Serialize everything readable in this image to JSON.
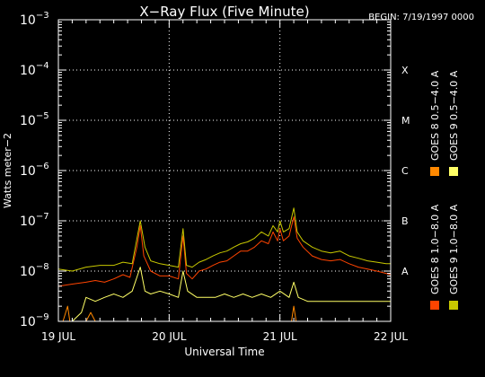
{
  "chart_data": {
    "type": "line",
    "title": "X−Ray Flux (Five Minute)",
    "begin_label": "BEGIN: 7/19/1997 0000",
    "ylabel": "Watts meter−2",
    "xlabel": "Universal Time",
    "y_scale": "log",
    "ylim": [
      1e-09,
      0.001
    ],
    "y_ticks": [
      {
        "value": 0.001,
        "base": "10",
        "exp": "−3"
      },
      {
        "value": 0.0001,
        "base": "10",
        "exp": "−4"
      },
      {
        "value": 1e-05,
        "base": "10",
        "exp": "−5"
      },
      {
        "value": 1e-06,
        "base": "10",
        "exp": "−6"
      },
      {
        "value": 1e-07,
        "base": "10",
        "exp": "−7"
      },
      {
        "value": 1e-08,
        "base": "10",
        "exp": "−8"
      },
      {
        "value": 1e-09,
        "base": "10",
        "exp": "−9"
      }
    ],
    "xlim": [
      "1997-07-19 00:00",
      "1997-07-22 00:00"
    ],
    "x_ticks": [
      {
        "value": "1997-07-19 00:00",
        "label": "19 JUL"
      },
      {
        "value": "1997-07-20 00:00",
        "label": "20 JUL"
      },
      {
        "value": "1997-07-21 00:00",
        "label": "21 JUL"
      },
      {
        "value": "1997-07-22 00:00",
        "label": "22 JUL"
      }
    ],
    "class_levels": [
      {
        "label": "X",
        "value": 0.0001
      },
      {
        "label": "M",
        "value": 1e-05
      },
      {
        "label": "C",
        "value": 1e-06
      },
      {
        "label": "B",
        "value": 1e-07
      },
      {
        "label": "A",
        "value": 1e-08
      }
    ],
    "grid": "dotted at class levels and day boundaries",
    "legend_position": "right, vertical",
    "series": [
      {
        "name": "GOES 8 1.0−8.0 A",
        "color": "#ff4400",
        "points": [
          [
            "1997-07-19 00:00",
            5e-09
          ],
          [
            "1997-07-19 03:00",
            5.5e-09
          ],
          [
            "1997-07-19 06:00",
            6e-09
          ],
          [
            "1997-07-19 08:00",
            6.5e-09
          ],
          [
            "1997-07-19 10:00",
            6e-09
          ],
          [
            "1997-07-19 12:00",
            7e-09
          ],
          [
            "1997-07-19 14:00",
            8.5e-09
          ],
          [
            "1997-07-19 15:30",
            7.5e-09
          ],
          [
            "1997-07-19 17:00",
            3e-08
          ],
          [
            "1997-07-19 17:45",
            8e-08
          ],
          [
            "1997-07-19 18:30",
            2e-08
          ],
          [
            "1997-07-19 20:00",
            1e-08
          ],
          [
            "1997-07-19 22:00",
            8e-09
          ],
          [
            "1997-07-20 00:00",
            8e-09
          ],
          [
            "1997-07-20 02:00",
            7e-09
          ],
          [
            "1997-07-20 03:00",
            5e-08
          ],
          [
            "1997-07-20 03:45",
            9e-09
          ],
          [
            "1997-07-20 05:00",
            7e-09
          ],
          [
            "1997-07-20 06:30",
            1e-08
          ],
          [
            "1997-07-20 08:00",
            1.1e-08
          ],
          [
            "1997-07-20 09:30",
            1.3e-08
          ],
          [
            "1997-07-20 11:00",
            1.5e-08
          ],
          [
            "1997-07-20 12:30",
            1.6e-08
          ],
          [
            "1997-07-20 14:00",
            2e-08
          ],
          [
            "1997-07-20 15:30",
            2.5e-08
          ],
          [
            "1997-07-20 17:00",
            2.5e-08
          ],
          [
            "1997-07-20 18:30",
            3e-08
          ],
          [
            "1997-07-20 20:00",
            4e-08
          ],
          [
            "1997-07-20 21:30",
            3.5e-08
          ],
          [
            "1997-07-20 22:30",
            6e-08
          ],
          [
            "1997-07-20 23:30",
            4e-08
          ],
          [
            "1997-07-21 00:00",
            7e-08
          ],
          [
            "1997-07-21 00:45",
            4e-08
          ],
          [
            "1997-07-21 02:00",
            5e-08
          ],
          [
            "1997-07-21 03:00",
            1.2e-07
          ],
          [
            "1997-07-21 03:45",
            4.5e-08
          ],
          [
            "1997-07-21 05:00",
            3e-08
          ],
          [
            "1997-07-21 07:00",
            2e-08
          ],
          [
            "1997-07-21 09:00",
            1.7e-08
          ],
          [
            "1997-07-21 11:00",
            1.6e-08
          ],
          [
            "1997-07-21 13:00",
            1.7e-08
          ],
          [
            "1997-07-21 15:00",
            1.4e-08
          ],
          [
            "1997-07-21 17:00",
            1.2e-08
          ],
          [
            "1997-07-21 19:00",
            1.1e-08
          ],
          [
            "1997-07-21 21:00",
            1e-08
          ],
          [
            "1997-07-21 23:00",
            9e-09
          ],
          [
            "1997-07-22 00:00",
            8.5e-09
          ]
        ]
      },
      {
        "name": "GOES 8 0.5−4.0 A",
        "color": "#ff8800",
        "points": [
          [
            "1997-07-19 00:00",
            1e-09
          ],
          [
            "1997-07-19 01:00",
            1e-09
          ],
          [
            "1997-07-19 02:00",
            2e-09
          ],
          [
            "1997-07-19 02:30",
            1e-09
          ],
          [
            "1997-07-19 06:00",
            1e-09
          ],
          [
            "1997-07-19 07:00",
            1.5e-09
          ],
          [
            "1997-07-19 08:00",
            1e-09
          ],
          [
            "1997-07-19 17:30",
            1e-09
          ],
          [
            "1997-07-19 18:00",
            1e-09
          ],
          [
            "1997-07-21 02:30",
            1e-09
          ],
          [
            "1997-07-21 03:00",
            2e-09
          ],
          [
            "1997-07-21 03:30",
            1e-09
          ],
          [
            "1997-07-22 00:00",
            1e-09
          ]
        ]
      },
      {
        "name": "GOES 9 1.0−8.0 A",
        "color": "#c8c800",
        "points": [
          [
            "1997-07-19 00:00",
            1.1e-08
          ],
          [
            "1997-07-19 03:00",
            1e-08
          ],
          [
            "1997-07-19 06:00",
            1.2e-08
          ],
          [
            "1997-07-19 09:00",
            1.3e-08
          ],
          [
            "1997-07-19 12:00",
            1.3e-08
          ],
          [
            "1997-07-19 14:00",
            1.5e-08
          ],
          [
            "1997-07-19 16:00",
            1.4e-08
          ],
          [
            "1997-07-19 17:45",
            1e-07
          ],
          [
            "1997-07-19 18:45",
            3e-08
          ],
          [
            "1997-07-19 20:00",
            1.6e-08
          ],
          [
            "1997-07-19 22:00",
            1.4e-08
          ],
          [
            "1997-07-20 00:00",
            1.3e-08
          ],
          [
            "1997-07-20 02:00",
            1.2e-08
          ],
          [
            "1997-07-20 03:00",
            7e-08
          ],
          [
            "1997-07-20 03:45",
            1.3e-08
          ],
          [
            "1997-07-20 05:00",
            1.2e-08
          ],
          [
            "1997-07-20 06:30",
            1.5e-08
          ],
          [
            "1997-07-20 08:00",
            1.7e-08
          ],
          [
            "1997-07-20 09:30",
            2e-08
          ],
          [
            "1997-07-20 11:00",
            2.3e-08
          ],
          [
            "1997-07-20 12:30",
            2.5e-08
          ],
          [
            "1997-07-20 14:00",
            3e-08
          ],
          [
            "1997-07-20 15:30",
            3.5e-08
          ],
          [
            "1997-07-20 17:00",
            3.8e-08
          ],
          [
            "1997-07-20 18:30",
            4.5e-08
          ],
          [
            "1997-07-20 20:00",
            6e-08
          ],
          [
            "1997-07-20 21:30",
            5e-08
          ],
          [
            "1997-07-20 22:30",
            8e-08
          ],
          [
            "1997-07-20 23:30",
            6e-08
          ],
          [
            "1997-07-21 00:00",
            1e-07
          ],
          [
            "1997-07-21 00:45",
            6e-08
          ],
          [
            "1997-07-21 02:00",
            7e-08
          ],
          [
            "1997-07-21 03:00",
            1.8e-07
          ],
          [
            "1997-07-21 03:45",
            6e-08
          ],
          [
            "1997-07-21 05:00",
            4e-08
          ],
          [
            "1997-07-21 07:00",
            3e-08
          ],
          [
            "1997-07-21 09:00",
            2.5e-08
          ],
          [
            "1997-07-21 11:00",
            2.3e-08
          ],
          [
            "1997-07-21 13:00",
            2.5e-08
          ],
          [
            "1997-07-21 15:00",
            2e-08
          ],
          [
            "1997-07-21 17:00",
            1.8e-08
          ],
          [
            "1997-07-21 19:00",
            1.6e-08
          ],
          [
            "1997-07-21 21:00",
            1.5e-08
          ],
          [
            "1997-07-21 23:00",
            1.4e-08
          ],
          [
            "1997-07-22 00:00",
            1.4e-08
          ]
        ]
      },
      {
        "name": "GOES 9 0.5−4.0 A",
        "color": "#ffff66",
        "points": [
          [
            "1997-07-19 00:00",
            1e-09
          ],
          [
            "1997-07-19 03:00",
            1e-09
          ],
          [
            "1997-07-19 05:00",
            1.5e-09
          ],
          [
            "1997-07-19 06:00",
            3e-09
          ],
          [
            "1997-07-19 08:00",
            2.5e-09
          ],
          [
            "1997-07-19 10:00",
            3e-09
          ],
          [
            "1997-07-19 12:00",
            3.5e-09
          ],
          [
            "1997-07-19 14:00",
            3e-09
          ],
          [
            "1997-07-19 16:00",
            4e-09
          ],
          [
            "1997-07-19 17:45",
            1.2e-08
          ],
          [
            "1997-07-19 18:45",
            4e-09
          ],
          [
            "1997-07-19 20:00",
            3.5e-09
          ],
          [
            "1997-07-19 22:00",
            4e-09
          ],
          [
            "1997-07-20 00:00",
            3.5e-09
          ],
          [
            "1997-07-20 02:00",
            3e-09
          ],
          [
            "1997-07-20 03:00",
            1e-08
          ],
          [
            "1997-07-20 04:00",
            4e-09
          ],
          [
            "1997-07-20 06:00",
            3e-09
          ],
          [
            "1997-07-20 08:00",
            3e-09
          ],
          [
            "1997-07-20 10:00",
            3e-09
          ],
          [
            "1997-07-20 12:00",
            3.5e-09
          ],
          [
            "1997-07-20 14:00",
            3e-09
          ],
          [
            "1997-07-20 16:00",
            3.5e-09
          ],
          [
            "1997-07-20 18:00",
            3e-09
          ],
          [
            "1997-07-20 20:00",
            3.5e-09
          ],
          [
            "1997-07-20 22:00",
            3e-09
          ],
          [
            "1997-07-21 00:00",
            4e-09
          ],
          [
            "1997-07-21 02:00",
            3e-09
          ],
          [
            "1997-07-21 03:00",
            6e-09
          ],
          [
            "1997-07-21 04:00",
            3e-09
          ],
          [
            "1997-07-21 06:00",
            2.5e-09
          ],
          [
            "1997-07-21 09:00",
            2.5e-09
          ],
          [
            "1997-07-21 12:00",
            2.5e-09
          ],
          [
            "1997-07-21 15:00",
            2.5e-09
          ],
          [
            "1997-07-21 18:00",
            2.5e-09
          ],
          [
            "1997-07-21 21:00",
            2.5e-09
          ],
          [
            "1997-07-22 00:00",
            2.5e-09
          ]
        ]
      }
    ]
  }
}
